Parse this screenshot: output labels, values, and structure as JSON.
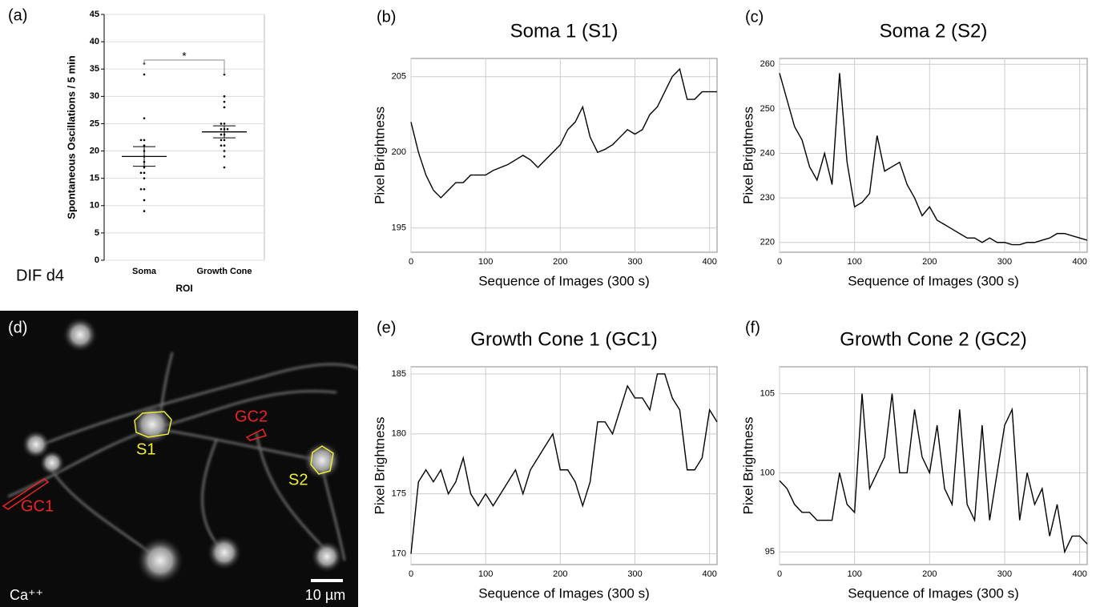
{
  "chart_data": [
    {
      "type": "dot",
      "panel_label": "(a)",
      "note": "DIF d4",
      "ylabel": "Spontaneous Oscillations / 5 min",
      "xlabel": "ROI",
      "categories": [
        "Soma",
        "Growth Cone"
      ],
      "points": [
        [
          36,
          34,
          26,
          22,
          22,
          21,
          20,
          19,
          18,
          17,
          16,
          16,
          15,
          13,
          13,
          11,
          9
        ],
        [
          34,
          30,
          29,
          28,
          25,
          25,
          24,
          24,
          24,
          23,
          23,
          22,
          22,
          21,
          21,
          20,
          19,
          17
        ]
      ],
      "means": [
        19,
        23.5
      ],
      "errors": [
        1.8,
        1.1
      ],
      "annotation": "*",
      "ylim": [
        0,
        45
      ],
      "yticks": [
        0,
        5,
        10,
        15,
        20,
        25,
        30,
        35,
        40,
        45
      ],
      "grid": true,
      "color": "#000000"
    },
    {
      "type": "line",
      "panel_label": "(b)",
      "title": "Soma 1 (S1)",
      "xlabel": "Sequence of Images (300 s)",
      "ylabel": "Pixel Brightness",
      "x": [
        0,
        10,
        20,
        30,
        40,
        50,
        60,
        70,
        80,
        90,
        100,
        110,
        120,
        130,
        140,
        150,
        160,
        170,
        180,
        190,
        200,
        210,
        220,
        230,
        240,
        250,
        260,
        270,
        280,
        290,
        300,
        310,
        320,
        330,
        340,
        350,
        360,
        370,
        380,
        390,
        400,
        410
      ],
      "values": [
        202,
        200,
        198.5,
        197.5,
        197,
        197.5,
        198,
        198,
        198.5,
        198.5,
        198.5,
        198.8,
        199,
        199.2,
        199.5,
        199.8,
        199.5,
        199,
        199.5,
        200,
        200.5,
        201.5,
        202,
        203,
        201,
        200,
        200.2,
        200.5,
        201,
        201.5,
        201.2,
        201.5,
        202.5,
        203,
        204,
        205,
        205.5,
        203.5,
        203.5,
        204,
        204,
        204
      ],
      "xlim": [
        0,
        410
      ],
      "ylim": [
        193.4,
        206.2
      ],
      "xticks": [
        0,
        100,
        200,
        300,
        400
      ],
      "yticks": [
        195,
        200,
        205
      ],
      "grid": true,
      "color": "#000000"
    },
    {
      "type": "line",
      "panel_label": "(c)",
      "title": "Soma 2 (S2)",
      "xlabel": "Sequence of Images (300 s)",
      "ylabel": "Pixel Brightness",
      "x": [
        0,
        10,
        20,
        30,
        40,
        50,
        60,
        70,
        80,
        90,
        100,
        110,
        120,
        130,
        140,
        150,
        160,
        170,
        180,
        190,
        200,
        210,
        220,
        230,
        240,
        250,
        260,
        270,
        280,
        290,
        300,
        310,
        320,
        330,
        340,
        350,
        360,
        370,
        380,
        390,
        400,
        410
      ],
      "values": [
        258,
        252,
        246,
        243,
        237,
        234,
        240,
        233,
        258,
        238,
        228,
        229,
        231,
        244,
        236,
        237,
        238,
        233,
        230,
        226,
        228,
        225,
        224,
        223,
        222,
        221,
        221,
        220,
        221,
        220,
        220,
        219.5,
        219.5,
        220,
        220,
        220.5,
        221,
        222,
        222,
        221.5,
        221,
        220.5
      ],
      "xlim": [
        0,
        410
      ],
      "ylim": [
        217.8,
        261.3
      ],
      "xticks": [
        0,
        100,
        200,
        300,
        400
      ],
      "yticks": [
        220,
        230,
        240,
        250,
        260
      ],
      "grid": true,
      "color": "#000000"
    },
    {
      "type": "line",
      "panel_label": "(e)",
      "title": "Growth Cone 1 (GC1)",
      "xlabel": "Sequence of Images (300 s)",
      "ylabel": "Pixel Brightness",
      "x": [
        0,
        10,
        20,
        30,
        40,
        50,
        60,
        70,
        80,
        90,
        100,
        110,
        120,
        130,
        140,
        150,
        160,
        170,
        180,
        190,
        200,
        210,
        220,
        230,
        240,
        250,
        260,
        270,
        280,
        290,
        300,
        310,
        320,
        330,
        340,
        350,
        360,
        370,
        380,
        390,
        400,
        410
      ],
      "values": [
        170,
        176,
        177,
        176,
        177,
        175,
        176,
        178,
        175,
        174,
        175,
        174,
        175,
        176,
        177,
        175,
        177,
        178,
        179,
        180,
        177,
        177,
        176,
        174,
        176,
        181,
        181,
        180,
        182,
        184,
        183,
        183,
        182,
        185,
        185,
        183,
        182,
        177,
        177,
        178,
        182,
        181
      ],
      "xlim": [
        0,
        410
      ],
      "ylim": [
        169.1,
        185.6
      ],
      "xticks": [
        0,
        100,
        200,
        300,
        400
      ],
      "yticks": [
        170,
        175,
        180,
        185
      ],
      "grid": true,
      "color": "#000000"
    },
    {
      "type": "line",
      "panel_label": "(f)",
      "title": "Growth Cone 2 (GC2)",
      "xlabel": "Sequence of Images (300 s)",
      "ylabel": "Pixel Brightness",
      "x": [
        0,
        10,
        20,
        30,
        40,
        50,
        60,
        70,
        80,
        90,
        100,
        110,
        120,
        130,
        140,
        150,
        160,
        170,
        180,
        190,
        200,
        210,
        220,
        230,
        240,
        250,
        260,
        270,
        280,
        290,
        300,
        310,
        320,
        330,
        340,
        350,
        360,
        370,
        380,
        390,
        400,
        410
      ],
      "values": [
        99.5,
        99,
        98,
        97.5,
        97.5,
        97,
        97,
        97,
        100,
        98,
        97.5,
        105,
        99,
        100,
        101,
        105,
        100,
        100,
        104,
        101,
        100,
        103,
        99,
        98,
        104,
        98,
        97,
        103,
        97,
        100,
        103,
        104,
        97,
        100,
        98,
        99,
        96,
        98,
        95,
        96,
        96,
        95.5
      ],
      "xlim": [
        0,
        410
      ],
      "ylim": [
        94.2,
        106.7
      ],
      "xticks": [
        0,
        100,
        200,
        300,
        400
      ],
      "yticks": [
        95,
        100,
        105
      ],
      "grid": true,
      "color": "#000000"
    }
  ],
  "image_panel": {
    "panel_label": "(d)",
    "labels": [
      "S1",
      "S2",
      "GC1",
      "GC2"
    ],
    "ion": "Ca⁺⁺",
    "scale_bar": "10 µm"
  }
}
